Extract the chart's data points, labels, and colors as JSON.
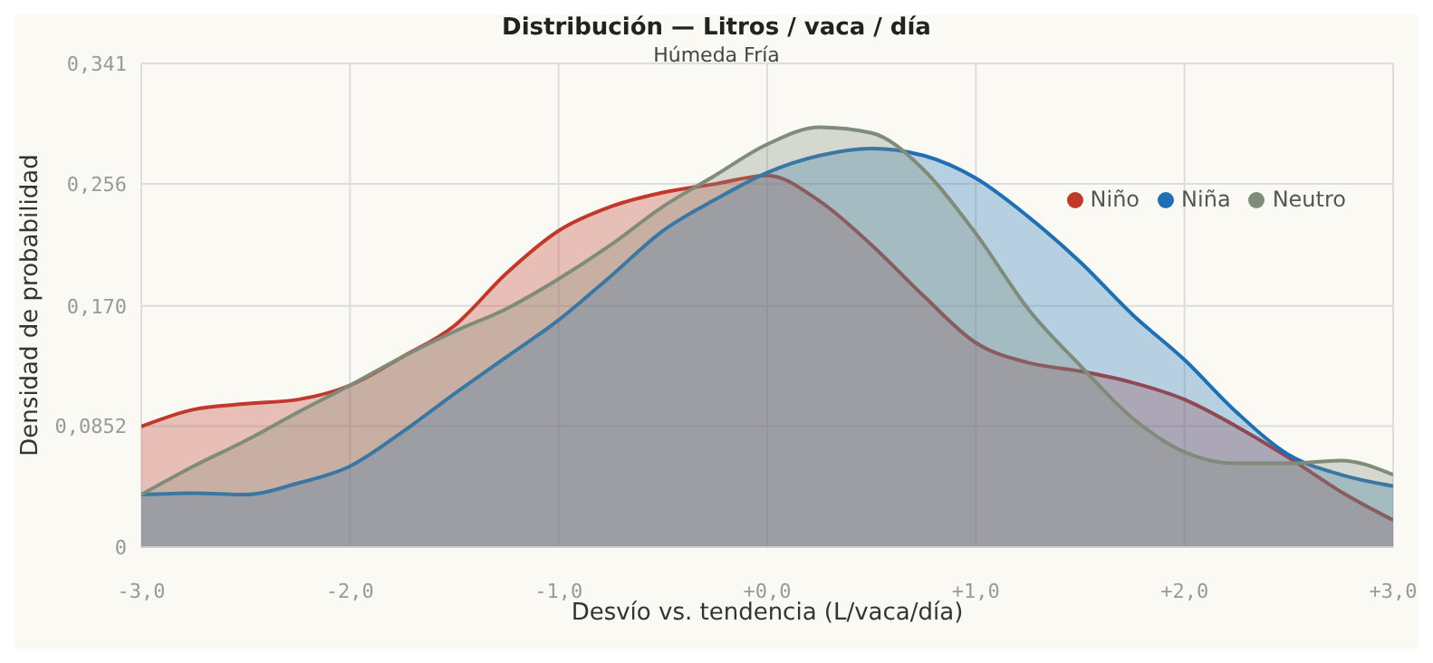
{
  "chart_data": {
    "type": "area",
    "title": "Distribución — Litros / vaca / día",
    "subtitle": "Húmeda Fría",
    "xlabel": "Desvío vs. tendencia (L/vaca/día)",
    "ylabel": "Densidad de probabilidad",
    "x": [
      -3,
      -2.75,
      -2.5,
      -2.25,
      -2,
      -1.75,
      -1.5,
      -1.25,
      -1,
      -0.75,
      -0.5,
      -0.25,
      0,
      0.25,
      0.5,
      0.75,
      1,
      1.25,
      1.5,
      1.75,
      2,
      2.25,
      2.5,
      2.75,
      3
    ],
    "series": [
      {
        "name": "Niño",
        "color": "#c0392b",
        "values": [
          0.085,
          0.097,
          0.101,
          0.104,
          0.114,
          0.134,
          0.156,
          0.193,
          0.223,
          0.24,
          0.25,
          0.256,
          0.262,
          0.244,
          0.213,
          0.177,
          0.144,
          0.13,
          0.124,
          0.116,
          0.104,
          0.085,
          0.063,
          0.039,
          0.019
        ]
      },
      {
        "name": "Niña",
        "color": "#1f6fb5",
        "values": [
          0.037,
          0.038,
          0.037,
          0.045,
          0.057,
          0.081,
          0.108,
          0.134,
          0.16,
          0.191,
          0.223,
          0.245,
          0.264,
          0.276,
          0.281,
          0.276,
          0.26,
          0.233,
          0.201,
          0.164,
          0.132,
          0.095,
          0.065,
          0.051,
          0.043
        ]
      },
      {
        "name": "Neutro",
        "color": "#7f8c7a",
        "values": [
          0.037,
          0.057,
          0.075,
          0.095,
          0.114,
          0.134,
          0.152,
          0.168,
          0.189,
          0.213,
          0.24,
          0.262,
          0.284,
          0.296,
          0.292,
          0.266,
          0.221,
          0.168,
          0.128,
          0.091,
          0.067,
          0.059,
          0.059,
          0.061,
          0.051
        ]
      }
    ],
    "xlim": [
      -3,
      3
    ],
    "xticks": [
      {
        "value": -3,
        "label": "-3,0"
      },
      {
        "value": -2,
        "label": "-2,0"
      },
      {
        "value": -1,
        "label": "-1,0"
      },
      {
        "value": 0,
        "label": "+0,0"
      },
      {
        "value": 1,
        "label": "+1,0"
      },
      {
        "value": 2,
        "label": "+2,0"
      },
      {
        "value": 3,
        "label": "+3,0"
      }
    ],
    "ylim": [
      0,
      0.341
    ],
    "yticks": [
      0,
      {
        "value": 0.0852,
        "label": "0,0852"
      },
      {
        "value": 0.17,
        "label": "0,170"
      },
      {
        "value": 0.256,
        "label": "0,256"
      },
      {
        "value": 0.341,
        "label": "0,341"
      }
    ],
    "grid": true,
    "legend": "top right"
  }
}
